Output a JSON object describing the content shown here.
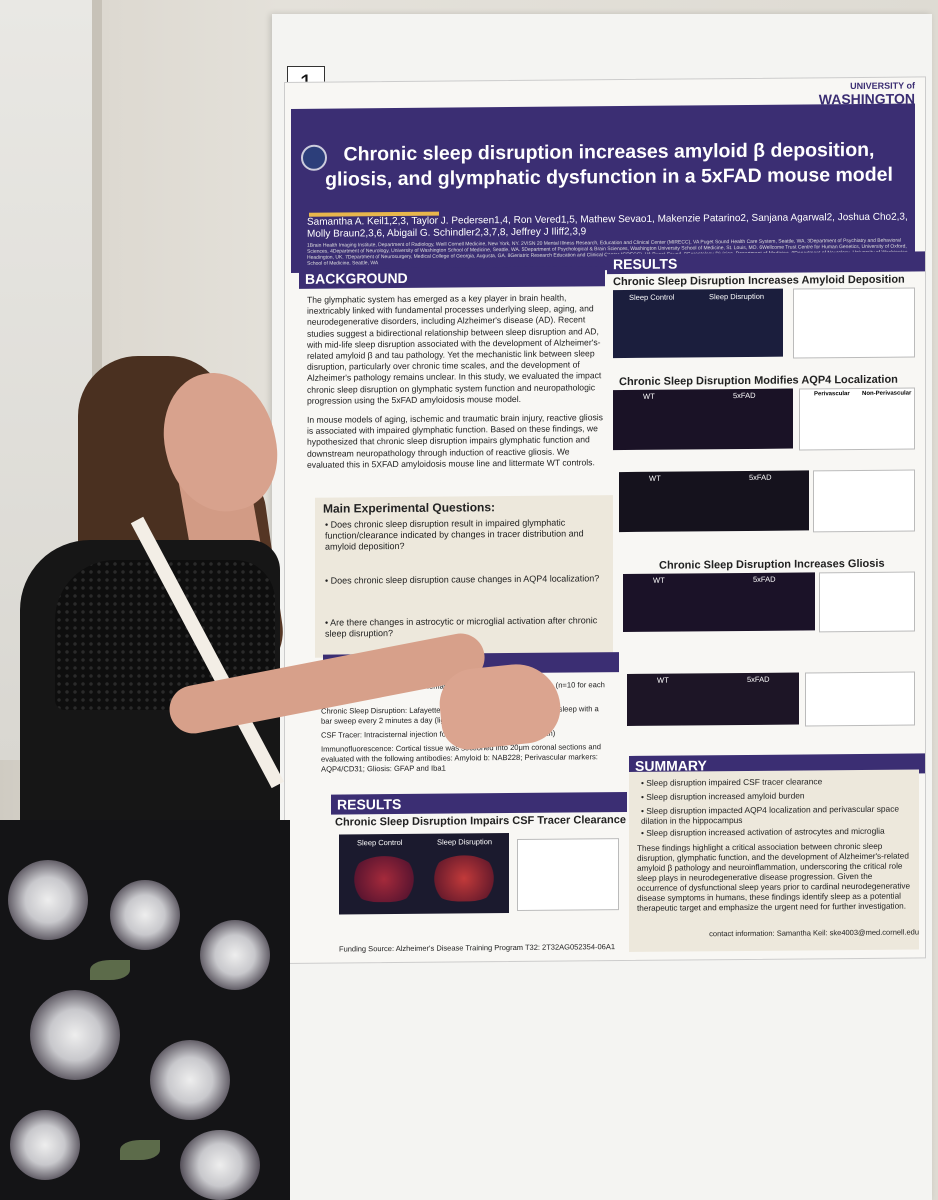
{
  "board_number": "1",
  "poster": {
    "university": {
      "top": "UNIVERSITY of",
      "name": "WASHINGTON"
    },
    "title_line1": "Chronic sleep disruption increases amyloid β deposition,",
    "title_line2": "gliosis, and glymphatic dysfunction in a 5xFAD mouse model",
    "authors_line1": "Samantha A. Keil1,2,3, Taylor J. Pedersen1,4, Ron Vered1,5, Mathew Sevao1, Makenzie Patarino2, Sanjana Agarwal2, Joshua Cho2,3,",
    "authors_line2": "Molly Braun2,3,6, Abigail G. Schindler2,3,7,8, Jeffrey J Iliff2,3,9",
    "affiliations": "1Brain Health Imaging Institute, Department of Radiology, Weill Cornell Medicine, New York, NY. 2VISN 20 Mental Illness Research, Education and Clinical Center (MIRECC), VA Puget Sound Health Care System, Seattle, WA. 3Department of Psychiatry and Behavioral Sciences, 4Department of Neurology, University of Washington School of Medicine, Seattle, WA. 5Department of Psychological & Brain Sciences, Washington University School of Medicine, St. Louis, MO. 6Wellcome Trust Centre for Human Genetics, University of Oxford, Headington, UK. 7Department of Neurosurgery, Medical College of Georgia, Augusta, GA. 8Geriatric Research Education and Clinical Center (GRECC), VA Puget Sound. 9Gerontology Division, Department of Medicine, 9Department of Neurology, University of Washington School of Medicine, Seattle, WA",
    "background_heading": "BACKGROUND",
    "background_p1": "The glymphatic system has emerged as a key player in brain health, inextricably linked with fundamental processes underlying sleep, aging, and neurodegenerative disorders, including Alzheimer's disease (AD). Recent studies suggest a bidirectional relationship between sleep disruption and AD, with mid-life sleep disruption associated with the development of Alzheimer's-related amyloid β and tau pathology. Yet the mechanistic link between sleep disruption, particularly over chronic time scales, and the development of Alzheimer's pathology remains unclear. In this study, we evaluated the impact chronic sleep disruption on glymphatic system function and neuropathologic progression using the 5xFAD amyloidosis mouse model.",
    "background_p2": "In mouse models of aging, ischemic and traumatic brain injury, reactive gliosis is associated with impaired glymphatic function. Based on these findings, we hypothesized that chronic sleep disruption impairs glymphatic function and downstream neuropathology through induction of reactive gliosis. We evaluated this in 5XFAD amyloidosis mouse line and littermate WT controls.",
    "questions_heading": "Main Experimental Questions:",
    "questions": [
      "Does chronic sleep disruption result in impaired glymphatic function/clearance indicated by changes in tracer distribution and amyloid deposition?",
      "Does chronic sleep disruption cause changes in AQP4 localization?",
      "Are there changes in astrocytic or microglial activation after chronic sleep disruption?"
    ],
    "methods_heading": "METHODS",
    "methods_animals": "Animals: 10-18 week male and female 5xFAD and littermate controls. (n=10 for each group)",
    "methods_sleep": "Chronic Sleep Disruption: Lafayette sleep fragmentation cages disrupt sleep with a bar sweep every 2 minutes a day (light cycle) for 8 weeks.",
    "methods_tracer": "CSF Tracer: Intracisternal injection following (Texas Red 3kD dextran)",
    "methods_histo": "Immunofluorescence: Cortical tissue was sectioned into 20μm coronal sections and evaluated with the following antibodies: Amyloid b: NAB228; Perivascular markers: AQP4/CD31; Gliosis: GFAP and Iba1",
    "results_left_heading": "RESULTS",
    "results_left_title": "Chronic Sleep Disruption Impairs CSF Tracer Clearance",
    "sleep_control": "Sleep Control",
    "sleep_disruption": "Sleep Disruption",
    "results_heading": "RESULTS",
    "r1_title": "Chronic Sleep Disruption Increases Amyloid Deposition",
    "r2_title": "Chronic Sleep Disruption Modifies AQP4 Localization",
    "r3_title": "Chronic Sleep Disruption Increases Gliosis",
    "wt": "WT",
    "fxfad": "5xFAD",
    "perivascular": "Perivascular",
    "non_perivascular": "Non-Perivascular",
    "summary_heading": "SUMMARY",
    "summary_items": [
      "Sleep disruption impaired CSF tracer clearance",
      "Sleep disruption increased amyloid burden",
      "Sleep disruption impacted AQP4 localization and perivascular space dilation in the hippocampus",
      "Sleep disruption increased activation of astrocytes and microglia"
    ],
    "summary_conclusion": "These findings highlight a critical association between chronic sleep disruption, glymphatic function, and the development of Alzheimer's-related amyloid β pathology and neuroinflammation, underscoring the critical role sleep plays in neurodegenerative disease progression. Given the occurrence of dysfunctional sleep years prior to cardinal neurodegenerative disease symptoms in humans, these findings identify sleep as a potential therapeutic target and emphasize the urgent need for further investigation.",
    "contact": "contact information: Samantha Keil: ske4003@med.cornell.edu",
    "funding": "Funding Source: Alzheimer's Disease Training Program T32: 2T32AG052354-06A1"
  },
  "colors": {
    "poster_purple": "#3b2e73",
    "accent_gold": "#e8b64c",
    "panel_beige": "#ede8dc"
  }
}
